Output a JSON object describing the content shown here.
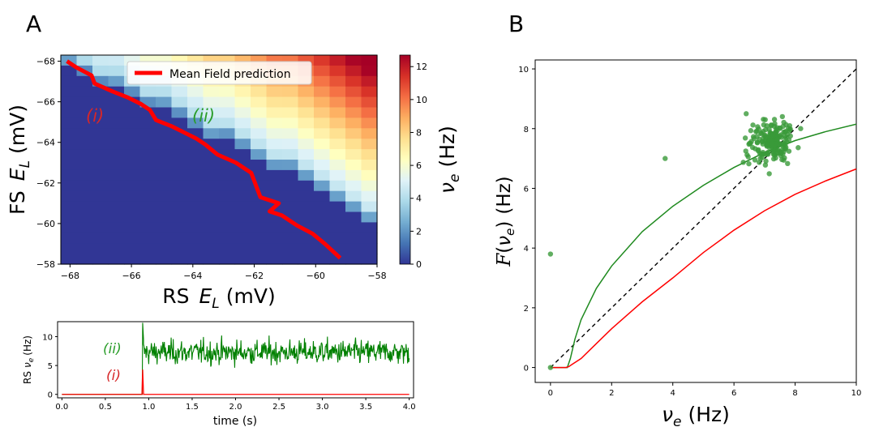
{
  "panels": {
    "a_label": "A",
    "b_label": "B"
  },
  "colors": {
    "mf_line": "#ff0000",
    "trace_ii": "#008000",
    "trace_i": "#ff0000",
    "fit_green": "#1f8a1f",
    "fit_red": "#ff0000",
    "scatter_fill": "#3a9a3a",
    "diag": "#000000"
  },
  "chart_data": [
    {
      "type": "heatmap",
      "panel": "A",
      "xlabel_prefix": "RS",
      "xlabel_sym": "E",
      "xlabel_sub": "L",
      "xlabel_unit": "(mV)",
      "ylabel_prefix": "FS",
      "ylabel_sym": "E",
      "ylabel_sub": "L",
      "ylabel_unit": "(mV)",
      "xlim": [
        -68.3,
        -58
      ],
      "ylim": [
        -58,
        -68.3
      ],
      "x_ticks": [
        -68,
        -66,
        -64,
        -62,
        -60,
        -58
      ],
      "y_ticks": [
        -68,
        -66,
        -64,
        -62,
        -60,
        -58
      ],
      "grid_n": 20,
      "grid_range": [
        -68.3,
        -58
      ],
      "boundary_col_rows": [
        1,
        2,
        3,
        3,
        4,
        5,
        5,
        6,
        7,
        8,
        8,
        9,
        10,
        11,
        11,
        12,
        13,
        14,
        15,
        16
      ],
      "colorbar": {
        "label_sym": "ν",
        "label_sub": "e",
        "label_unit": "(Hz)",
        "range": [
          0,
          12.7
        ],
        "ticks": [
          0,
          2,
          4,
          6,
          8,
          10,
          12
        ]
      },
      "legend": {
        "label": "Mean Field prediction",
        "position": "upper-center"
      },
      "region_labels": {
        "i": "(i)",
        "ii": "(ii)"
      },
      "mean_field_line": {
        "x": [
          -68.1,
          -67.8,
          -67.3,
          -67.2,
          -66.6,
          -66.1,
          -65.7,
          -65.4,
          -65.2,
          -64.7,
          -64.3,
          -63.9,
          -63.6,
          -63.2,
          -62.6,
          -62.1,
          -61.8,
          -61.2,
          -61.5,
          -61.1,
          -60.6,
          -60.1,
          -59.7,
          -59.2
        ],
        "y": [
          -68.0,
          -67.7,
          -67.3,
          -66.9,
          -66.5,
          -66.2,
          -65.9,
          -65.6,
          -65.1,
          -64.8,
          -64.5,
          -64.2,
          -63.9,
          -63.4,
          -63.0,
          -62.5,
          -61.3,
          -61.0,
          -60.6,
          -60.4,
          -59.9,
          -59.5,
          -59.0,
          -58.3
        ]
      }
    },
    {
      "type": "line",
      "panel": "A-bottom",
      "xlabel": "time (s)",
      "ylabel_prefix": "RS",
      "ylabel_sym": "ν",
      "ylabel_sub": "e",
      "ylabel_unit": "(Hz)",
      "xlim": [
        -0.05,
        4.05
      ],
      "ylim": [
        -0.6,
        12.6
      ],
      "x_ticks": [
        "0.0",
        "0.5",
        "1.0",
        "1.5",
        "2.0",
        "2.5",
        "3.0",
        "3.5",
        "4.0"
      ],
      "y_ticks": [
        0,
        5,
        10
      ],
      "series": [
        {
          "name": "(ii)",
          "onset": 0.93,
          "spike": 12.4,
          "mean": 7.3,
          "sd": 1.4,
          "end": 4.0
        },
        {
          "name": "(i)",
          "onset": 0.93,
          "spike": 4.3,
          "baseline": 0.0,
          "end": 4.0
        }
      ]
    },
    {
      "type": "scatter",
      "panel": "B",
      "xlabel_sym": "ν",
      "xlabel_sub": "e",
      "xlabel_unit": "(Hz)",
      "ylabel_sym": "F",
      "ylabel_arg_sym": "ν",
      "ylabel_arg_sub": "e",
      "ylabel_unit": "(Hz)",
      "xlim": [
        -0.5,
        10.0
      ],
      "ylim": [
        -0.5,
        10.3
      ],
      "x_ticks": [
        0,
        2,
        4,
        6,
        8,
        10
      ],
      "y_ticks": [
        0,
        2,
        4,
        6,
        8,
        10
      ],
      "diagonal": {
        "x": [
          0,
          10
        ],
        "y": [
          0,
          10
        ]
      },
      "green_curve": {
        "x": [
          0,
          0.55,
          0.65,
          0.8,
          1.0,
          1.5,
          2.0,
          3.0,
          4.0,
          5.0,
          6.0,
          7.0,
          8.0,
          9.0,
          10.0
        ],
        "y": [
          0,
          0,
          0.3,
          0.95,
          1.6,
          2.65,
          3.4,
          4.55,
          5.4,
          6.1,
          6.7,
          7.2,
          7.6,
          7.9,
          8.15
        ]
      },
      "red_curve": {
        "x": [
          0,
          0.5,
          0.6,
          0.7,
          1.0,
          1.5,
          2.0,
          3.0,
          4.0,
          5.0,
          6.0,
          7.0,
          8.0,
          9.0,
          10.0
        ],
        "y": [
          0,
          0,
          0.03,
          0.1,
          0.3,
          0.8,
          1.3,
          2.2,
          3.0,
          3.85,
          4.6,
          5.25,
          5.8,
          6.25,
          6.65
        ]
      },
      "points_fixed": [
        {
          "x": 0,
          "y": 3.8
        },
        {
          "x": 3.75,
          "y": 7.0
        },
        {
          "x": 0,
          "y": 0
        },
        {
          "x": 6.4,
          "y": 8.5
        }
      ],
      "cluster": {
        "center": [
          7.3,
          7.55
        ],
        "spread": [
          0.42,
          0.42
        ],
        "count": 190
      }
    }
  ]
}
